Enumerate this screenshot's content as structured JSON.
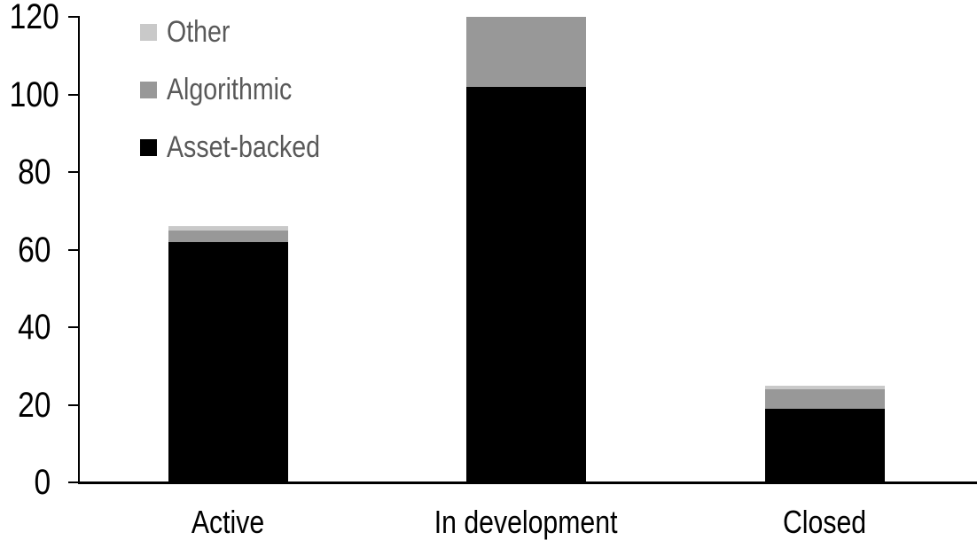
{
  "chart_data": {
    "type": "bar",
    "stacked": true,
    "title": "",
    "xlabel": "",
    "ylabel": "",
    "categories": [
      "Active",
      "In development",
      "Closed"
    ],
    "series": [
      {
        "name": "Asset-backed",
        "color": "#000000",
        "values": [
          62,
          102,
          19
        ]
      },
      {
        "name": "Algorithmic",
        "color": "#989898",
        "values": [
          3,
          18,
          5
        ]
      },
      {
        "name": "Other",
        "color": "#C9C9C9",
        "values": [
          1,
          0,
          1
        ]
      }
    ],
    "totals": [
      66,
      120,
      25
    ],
    "ylim": [
      0,
      120
    ],
    "ytick_step": 20,
    "ytick_labels": [
      "0",
      "20",
      "40",
      "60",
      "80",
      "100",
      "120"
    ],
    "grid": false,
    "legend": {
      "position": "top-left",
      "order": [
        "Other",
        "Algorithmic",
        "Asset-backed"
      ]
    }
  },
  "style": {
    "background": "#FFFFFF",
    "axis_color": "#000000",
    "tick_label_color": "#000000",
    "category_label_color": "#000000",
    "legend_text_color": "#595959"
  }
}
